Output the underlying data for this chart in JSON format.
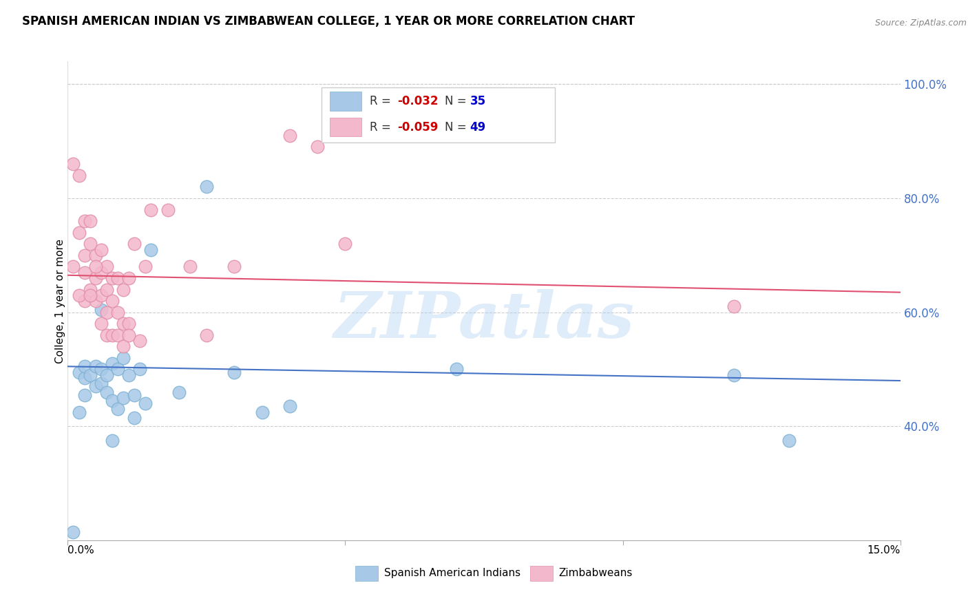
{
  "title": "SPANISH AMERICAN INDIAN VS ZIMBABWEAN COLLEGE, 1 YEAR OR MORE CORRELATION CHART",
  "source": "Source: ZipAtlas.com",
  "ylabel": "College, 1 year or more",
  "xmin": 0.0,
  "xmax": 0.15,
  "ymin": 0.2,
  "ymax": 1.04,
  "yticks": [
    0.4,
    0.6,
    0.8,
    1.0
  ],
  "ytick_labels": [
    "40.0%",
    "60.0%",
    "80.0%",
    "100.0%"
  ],
  "xticks": [
    0.0,
    0.05,
    0.1,
    0.15
  ],
  "xtick_labels": [
    "0.0%",
    "",
    "",
    "15.0%"
  ],
  "blue_scatter_x": [
    0.001,
    0.002,
    0.003,
    0.003,
    0.004,
    0.005,
    0.005,
    0.006,
    0.006,
    0.007,
    0.007,
    0.008,
    0.008,
    0.009,
    0.009,
    0.01,
    0.01,
    0.011,
    0.012,
    0.012,
    0.013,
    0.014,
    0.015,
    0.02,
    0.025,
    0.03,
    0.035,
    0.04,
    0.07,
    0.12,
    0.13,
    0.002,
    0.003,
    0.006,
    0.008
  ],
  "blue_scatter_y": [
    0.215,
    0.495,
    0.485,
    0.505,
    0.49,
    0.47,
    0.505,
    0.475,
    0.5,
    0.46,
    0.49,
    0.445,
    0.51,
    0.43,
    0.5,
    0.45,
    0.52,
    0.49,
    0.415,
    0.455,
    0.5,
    0.44,
    0.71,
    0.46,
    0.82,
    0.495,
    0.425,
    0.435,
    0.5,
    0.49,
    0.375,
    0.425,
    0.455,
    0.605,
    0.375
  ],
  "pink_scatter_x": [
    0.001,
    0.001,
    0.002,
    0.002,
    0.003,
    0.003,
    0.003,
    0.004,
    0.004,
    0.004,
    0.005,
    0.005,
    0.005,
    0.006,
    0.006,
    0.006,
    0.007,
    0.007,
    0.007,
    0.008,
    0.008,
    0.009,
    0.009,
    0.01,
    0.01,
    0.011,
    0.011,
    0.012,
    0.013,
    0.014,
    0.015,
    0.018,
    0.022,
    0.025,
    0.03,
    0.04,
    0.045,
    0.05,
    0.12,
    0.002,
    0.003,
    0.004,
    0.005,
    0.006,
    0.007,
    0.008,
    0.009,
    0.01,
    0.011
  ],
  "pink_scatter_y": [
    0.68,
    0.86,
    0.74,
    0.84,
    0.62,
    0.7,
    0.76,
    0.64,
    0.72,
    0.76,
    0.62,
    0.66,
    0.7,
    0.63,
    0.67,
    0.71,
    0.6,
    0.64,
    0.68,
    0.62,
    0.66,
    0.6,
    0.66,
    0.58,
    0.64,
    0.58,
    0.66,
    0.72,
    0.55,
    0.68,
    0.78,
    0.78,
    0.68,
    0.56,
    0.68,
    0.91,
    0.89,
    0.72,
    0.61,
    0.63,
    0.67,
    0.63,
    0.68,
    0.58,
    0.56,
    0.56,
    0.56,
    0.54,
    0.56
  ],
  "blue_line_x": [
    0.0,
    0.15
  ],
  "blue_line_y": [
    0.505,
    0.48
  ],
  "pink_line_x": [
    0.0,
    0.15
  ],
  "pink_line_y": [
    0.665,
    0.635
  ],
  "watermark": "ZIPatlas",
  "blue_color": "#a8c8e8",
  "blue_edge_color": "#7fb3d3",
  "pink_color": "#f4b8cc",
  "pink_edge_color": "#e090a8",
  "blue_line_color": "#4472c4",
  "pink_line_color": "#e05070",
  "legend_box_blue": "#a8c8e8",
  "legend_box_pink": "#f4b8cc",
  "legend_r_color": "#cc0000",
  "legend_n_color": "#0000cc"
}
